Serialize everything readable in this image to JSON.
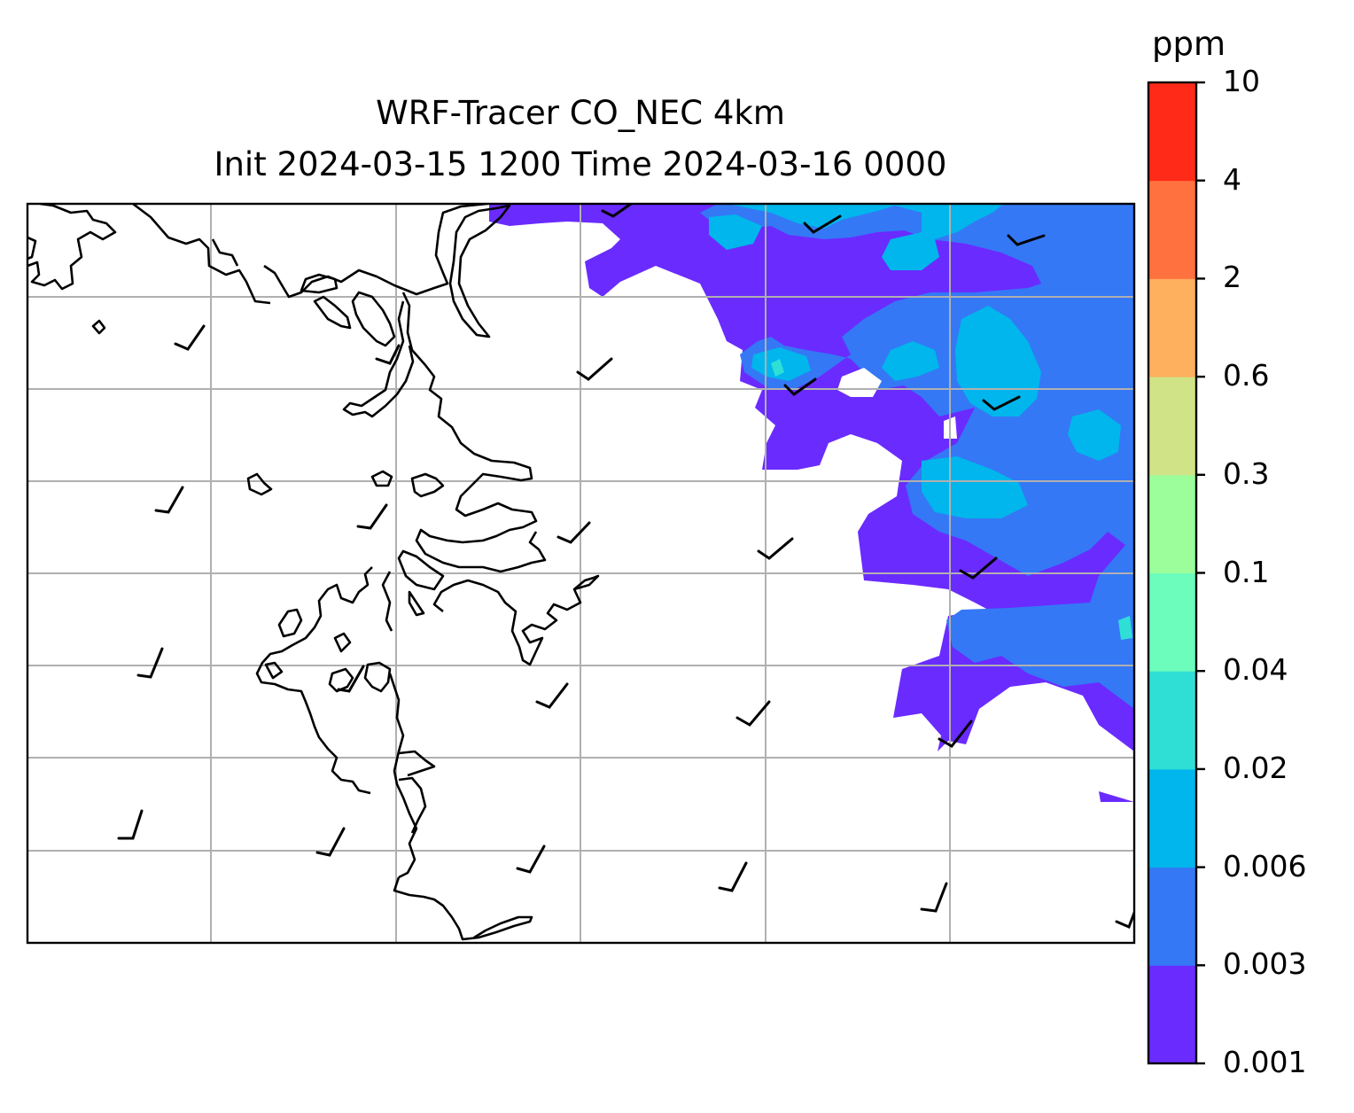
{
  "title": {
    "line1": "WRF-Tracer CO_NEC 4km",
    "line2": "Init 2024-03-15 1200 Time 2024-03-16 0000"
  },
  "colorbar": {
    "unit": "ppm",
    "levels": [
      "0.001",
      "0.003",
      "0.006",
      "0.02",
      "0.04",
      "0.1",
      "0.3",
      "0.6",
      "2",
      "4",
      "10"
    ],
    "colors": [
      "#6a2bff",
      "#3478f6",
      "#00b6ec",
      "#2fdfd6",
      "#6cfcbb",
      "#9bfe9b",
      "#d0e387",
      "#ffb05f",
      "#ff7240",
      "#ff2a17"
    ]
  },
  "map": {
    "gridlines": "on",
    "gridline_color": "#b0b0b0",
    "coastline_color": "#000000",
    "wind_barbs": "on",
    "tracer_field_location": "eastern half of domain"
  }
}
